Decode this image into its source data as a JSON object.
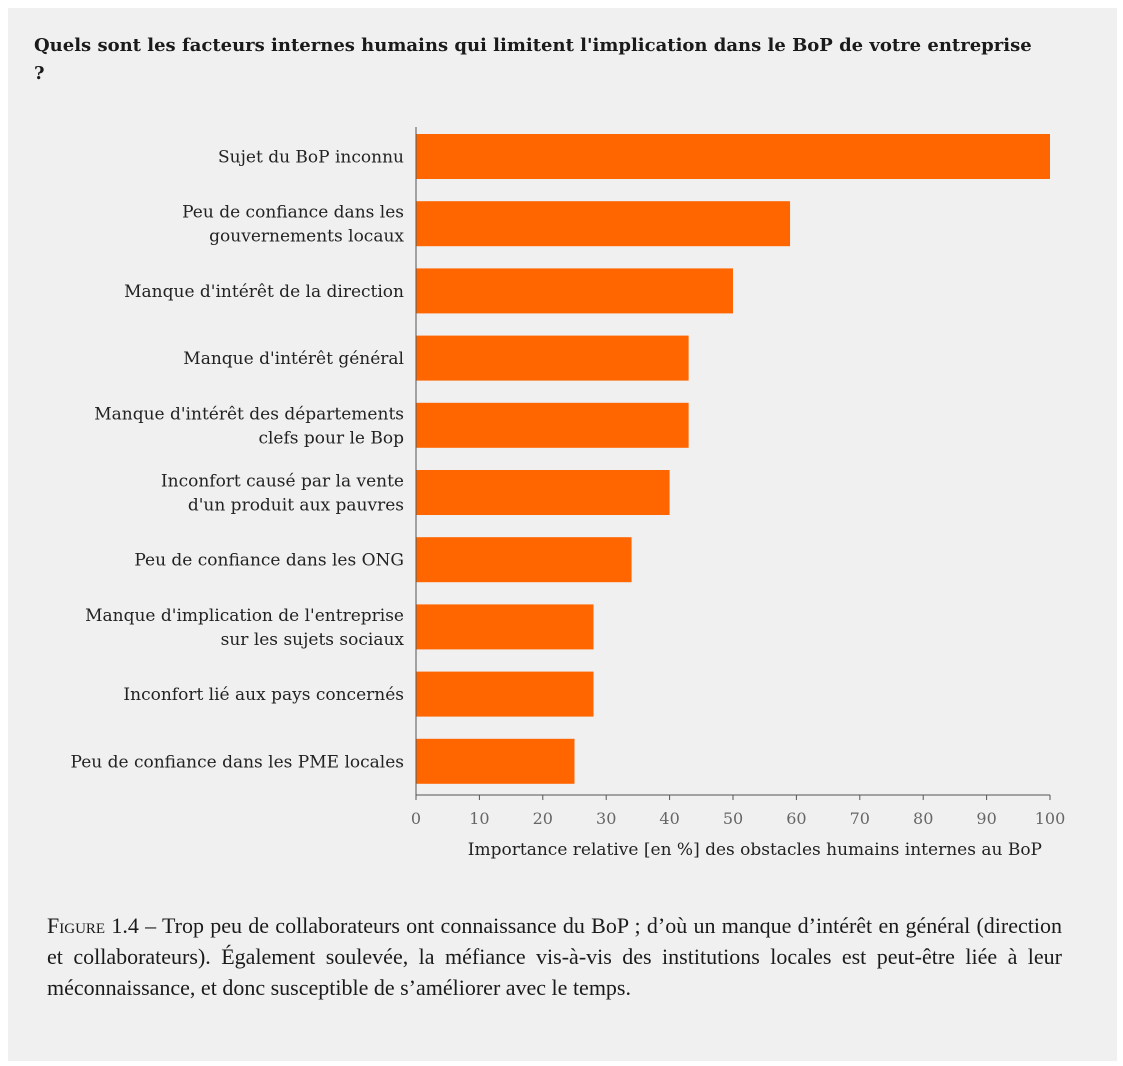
{
  "chart_data": {
    "type": "bar",
    "orientation": "horizontal",
    "title": "Quels sont les facteurs internes humains qui limitent l'implication dans le BoP de votre entreprise ?",
    "xlabel": "Importance relative [en %] des obstacles humains internes au BoP",
    "ylabel": "",
    "xlim": [
      0,
      100
    ],
    "xticks": [
      "0",
      "10",
      "20",
      "30",
      "40",
      "50",
      "60",
      "70",
      "80",
      "90",
      "100"
    ],
    "categories": [
      [
        "Sujet du BoP inconnu"
      ],
      [
        "Peu de confiance dans les",
        "gouvernements locaux"
      ],
      [
        "Manque d'intérêt de la direction"
      ],
      [
        "Manque d'intérêt général"
      ],
      [
        "Manque d'intérêt des départements",
        "clefs pour le Bop"
      ],
      [
        "Inconfort causé par la vente",
        "d'un produit aux pauvres"
      ],
      [
        "Peu de confiance dans les ONG"
      ],
      [
        "Manque d'implication de l'entreprise",
        "sur les sujets sociaux"
      ],
      [
        "Inconfort lié aux pays concernés"
      ],
      [
        "Peu de confiance dans les PME locales"
      ]
    ],
    "values": [
      100,
      59,
      50,
      43,
      43,
      40,
      34,
      28,
      28,
      25
    ],
    "bar_color": "#ff6600",
    "grid": false
  },
  "caption": {
    "label": "Figure 1.4",
    "dash": " – ",
    "text": "Trop peu de collaborateurs ont connaissance du BoP ; d’où un manque d’intérêt en général (direction et collaborateurs). Également soulevée, la méfiance vis-à-vis des institutions locales est peut-être liée à leur méconnaissance, et donc susceptible de s’améliorer avec le temps."
  }
}
